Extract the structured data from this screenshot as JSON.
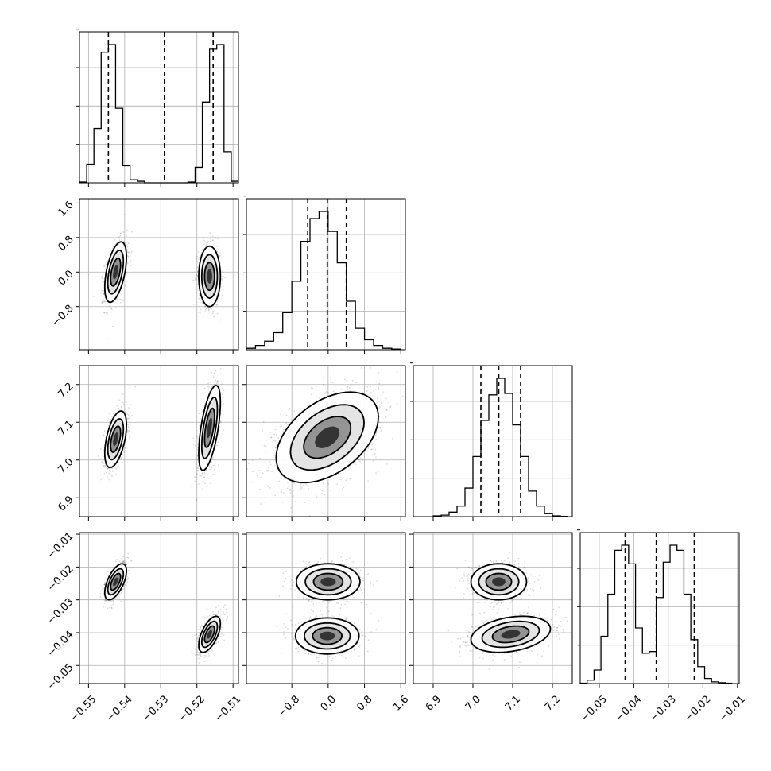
{
  "chart_data": {
    "type": "corner",
    "grid": true,
    "params": [
      {
        "range": [
          -0.5525,
          -0.5085
        ],
        "ticks": [
          -0.55,
          -0.54,
          -0.53,
          -0.52,
          -0.51
        ],
        "tick_labels": [
          "−0.55",
          "−0.54",
          "−0.53",
          "−0.52",
          "−0.51"
        ],
        "quantiles": [
          -0.5445,
          -0.529,
          -0.5155
        ],
        "hist": {
          "edges": [
            -0.5525,
            -0.5505,
            -0.5485,
            -0.5465,
            -0.5445,
            -0.5425,
            -0.5405,
            -0.5385,
            -0.5365,
            -0.5345,
            -0.5325,
            -0.5305,
            -0.5285,
            -0.5265,
            -0.5245,
            -0.5225,
            -0.5205,
            -0.5185,
            -0.5165,
            -0.5145,
            -0.5125,
            -0.5105,
            -0.5085
          ],
          "counts": [
            0.005,
            0.12,
            0.35,
            0.84,
            0.89,
            0.48,
            0.11,
            0.02,
            0.01,
            0.0,
            0.0,
            0.0,
            0.0,
            0.0,
            0.0,
            0.005,
            0.1,
            0.52,
            0.86,
            0.89,
            0.2,
            0.01
          ]
        }
      },
      {
        "range": [
          -1.8,
          1.7
        ],
        "ticks": [
          -0.8,
          0.0,
          0.8,
          1.6
        ],
        "tick_labels": [
          "−0.8",
          "0.0",
          "0.8",
          "1.6"
        ],
        "quantiles": [
          -0.45,
          -0.02,
          0.4
        ],
        "hist": {
          "edges": [
            -1.8,
            -1.6,
            -1.4,
            -1.2,
            -1.0,
            -0.8,
            -0.6,
            -0.4,
            -0.2,
            0.0,
            0.2,
            0.4,
            0.6,
            0.8,
            1.0,
            1.2,
            1.4,
            1.6
          ],
          "counts": [
            0.01,
            0.03,
            0.06,
            0.12,
            0.26,
            0.48,
            0.76,
            0.92,
            0.97,
            0.83,
            0.61,
            0.34,
            0.15,
            0.07,
            0.03,
            0.01,
            0.005
          ]
        }
      },
      {
        "range": [
          6.85,
          7.25
        ],
        "ticks": [
          6.9,
          7.0,
          7.1,
          7.2
        ],
        "tick_labels": [
          "6.9",
          "7.0",
          "7.1",
          "7.2"
        ],
        "quantiles": [
          7.02,
          7.065,
          7.12
        ],
        "hist": {
          "edges": [
            6.9,
            6.92,
            6.94,
            6.96,
            6.98,
            7.0,
            7.02,
            7.04,
            7.06,
            7.08,
            7.1,
            7.12,
            7.14,
            7.16,
            7.18,
            7.2,
            7.22,
            7.24
          ],
          "counts": [
            0.005,
            0.01,
            0.03,
            0.07,
            0.19,
            0.4,
            0.64,
            0.81,
            0.92,
            0.82,
            0.61,
            0.4,
            0.17,
            0.07,
            0.02,
            0.005,
            0.002
          ]
        }
      },
      {
        "range": [
          -0.0555,
          -0.0095
        ],
        "ticks": [
          -0.05,
          -0.04,
          -0.03,
          -0.02,
          -0.01
        ],
        "tick_labels": [
          "−0.05",
          "−0.04",
          "−0.03",
          "−0.02",
          "−0.01"
        ],
        "quantiles": [
          -0.0425,
          -0.0335,
          -0.0225
        ],
        "hist": {
          "edges": [
            -0.0555,
            -0.0535,
            -0.0515,
            -0.0495,
            -0.0475,
            -0.0455,
            -0.0435,
            -0.0415,
            -0.0395,
            -0.0375,
            -0.0355,
            -0.0335,
            -0.0315,
            -0.0295,
            -0.0275,
            -0.0255,
            -0.0235,
            -0.0215,
            -0.0195,
            -0.0175,
            -0.0155,
            -0.0135,
            -0.0115
          ],
          "counts": [
            0.002,
            0.02,
            0.08,
            0.28,
            0.53,
            0.79,
            0.82,
            0.71,
            0.33,
            0.18,
            0.19,
            0.51,
            0.72,
            0.82,
            0.79,
            0.53,
            0.26,
            0.1,
            0.03,
            0.01,
            0.005,
            0.002
          ]
        }
      }
    ],
    "pairs": [
      {
        "x": 0,
        "y": 1,
        "clusters": [
          {
            "cx": -0.5425,
            "cy": 0.0,
            "sx": 0.0012,
            "sy": 0.28,
            "rho": 0.5
          },
          {
            "cx": -0.5165,
            "cy": -0.1,
            "sx": 0.0012,
            "sy": 0.28,
            "rho": 0.0
          }
        ]
      },
      {
        "x": 0,
        "y": 2,
        "clusters": [
          {
            "cx": -0.5425,
            "cy": 7.055,
            "sx": 0.0012,
            "sy": 0.03,
            "rho": 0.5
          },
          {
            "cx": -0.5165,
            "cy": 7.085,
            "sx": 0.0012,
            "sy": 0.045,
            "rho": 0.6
          }
        ]
      },
      {
        "x": 1,
        "y": 2,
        "clusters": [
          {
            "cx": -0.02,
            "cy": 7.06,
            "sx": 0.45,
            "sy": 0.048,
            "rho": 0.45
          }
        ]
      },
      {
        "x": 0,
        "y": 3,
        "clusters": [
          {
            "cx": -0.5425,
            "cy": -0.0245,
            "sx": 0.0012,
            "sy": 0.0022,
            "rho": 0.6
          },
          {
            "cx": -0.5165,
            "cy": -0.0405,
            "sx": 0.0012,
            "sy": 0.0022,
            "rho": 0.6
          }
        ]
      },
      {
        "x": 1,
        "y": 3,
        "clusters": [
          {
            "cx": 0.0,
            "cy": -0.0245,
            "sx": 0.28,
            "sy": 0.0022,
            "rho": 0.0
          },
          {
            "cx": -0.02,
            "cy": -0.041,
            "sx": 0.28,
            "sy": 0.0022,
            "rho": 0.0
          }
        ]
      },
      {
        "x": 2,
        "y": 3,
        "clusters": [
          {
            "cx": 7.065,
            "cy": -0.0245,
            "sx": 0.028,
            "sy": 0.0022,
            "rho": 0.0
          },
          {
            "cx": 7.095,
            "cy": -0.0405,
            "sx": 0.04,
            "sy": 0.0022,
            "rho": 0.3
          }
        ]
      }
    ]
  }
}
